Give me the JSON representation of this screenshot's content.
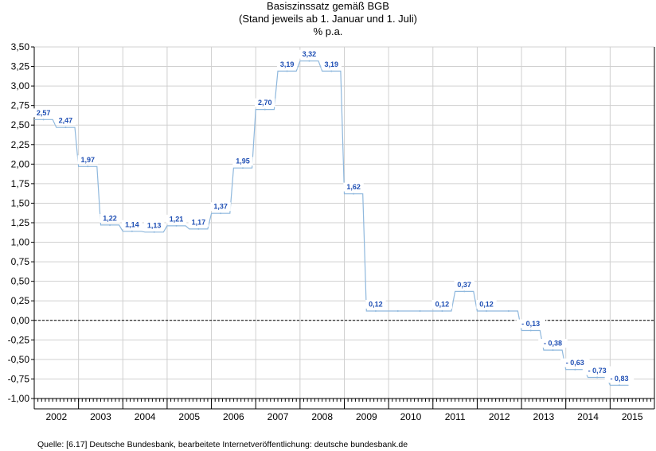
{
  "chart_data": {
    "type": "line",
    "step": true,
    "title": "Basiszinssatz gemäß BGB",
    "subtitle": "(Stand jeweils ab 1. Januar und 1. Juli)",
    "ylabel": "% p.a.",
    "xlabel": "",
    "ylim": [
      -1.0,
      3.5
    ],
    "xlim": [
      2002,
      2016
    ],
    "y_ticks": [
      "3,50",
      "3,25",
      "3,00",
      "2,75",
      "2,50",
      "2,25",
      "2,00",
      "1,75",
      "1,50",
      "1,25",
      "1,00",
      "0,75",
      "0,50",
      "0,25",
      "0,00",
      "-0,25",
      "-0,50",
      "-0,75",
      "-1,00"
    ],
    "x_ticks": [
      "2002",
      "2003",
      "2004",
      "2005",
      "2006",
      "2007",
      "2008",
      "2009",
      "2010",
      "2011",
      "2012",
      "2013",
      "2014",
      "2015"
    ],
    "grid": true,
    "zero_line": "dashed",
    "line_color": "#8fb8dd",
    "label_color": "#1f4fb4",
    "series": [
      {
        "values": [
          {
            "t": 2002.0,
            "y": 2.57,
            "label": "2,57"
          },
          {
            "t": 2002.5,
            "y": 2.47,
            "label": "2,47"
          },
          {
            "t": 2003.0,
            "y": 1.97,
            "label": "1,97"
          },
          {
            "t": 2003.5,
            "y": 1.22,
            "label": "1,22"
          },
          {
            "t": 2004.0,
            "y": 1.14,
            "label": "1,14"
          },
          {
            "t": 2004.5,
            "y": 1.13,
            "label": "1,13"
          },
          {
            "t": 2005.0,
            "y": 1.21,
            "label": "1,21"
          },
          {
            "t": 2005.5,
            "y": 1.17,
            "label": "1,17"
          },
          {
            "t": 2006.0,
            "y": 1.37,
            "label": "1,37"
          },
          {
            "t": 2006.5,
            "y": 1.95,
            "label": "1,95"
          },
          {
            "t": 2007.0,
            "y": 2.7,
            "label": "2,70"
          },
          {
            "t": 2007.5,
            "y": 3.19,
            "label": "3,19"
          },
          {
            "t": 2008.0,
            "y": 3.32,
            "label": "3,32"
          },
          {
            "t": 2008.5,
            "y": 3.19,
            "label": "3,19"
          },
          {
            "t": 2009.0,
            "y": 1.62,
            "label": "1,62"
          },
          {
            "t": 2009.5,
            "y": 0.12,
            "label": "0,12"
          },
          {
            "t": 2010.0,
            "y": 0.12,
            "label": ""
          },
          {
            "t": 2010.5,
            "y": 0.12,
            "label": ""
          },
          {
            "t": 2011.0,
            "y": 0.12,
            "label": "0,12"
          },
          {
            "t": 2011.5,
            "y": 0.37,
            "label": "0,37"
          },
          {
            "t": 2012.0,
            "y": 0.12,
            "label": "0,12"
          },
          {
            "t": 2012.5,
            "y": 0.12,
            "label": ""
          },
          {
            "t": 2013.0,
            "y": -0.13,
            "label": "- 0,13"
          },
          {
            "t": 2013.5,
            "y": -0.38,
            "label": "- 0,38"
          },
          {
            "t": 2014.0,
            "y": -0.63,
            "label": "- 0,63"
          },
          {
            "t": 2014.5,
            "y": -0.73,
            "label": "- 0,73"
          },
          {
            "t": 2015.0,
            "y": -0.83,
            "label": "- 0,83"
          }
        ]
      }
    ]
  },
  "source": "Quelle: [6.17] Deutsche Bundesbank, bearbeitete Internetveröffentlichung: deutsche bundesbank.de"
}
